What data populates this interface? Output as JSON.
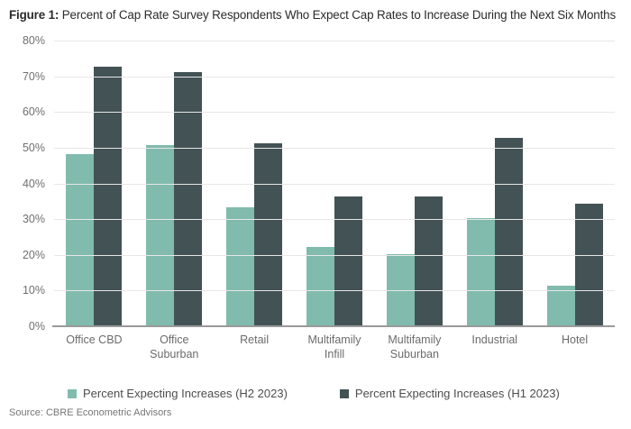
{
  "title": {
    "prefix": "Figure 1:",
    "text": " Percent of Cap Rate Survey Respondents Who Expect Cap Rates to Increase During the Next Six Months"
  },
  "source": "Source: CBRE Econometric Advisors",
  "colors": {
    "series_h2_2023": "#80BBAD",
    "series_h1_2023": "#435254",
    "gridline": "#e7e7e7",
    "axis_line": "#9a9a9a",
    "tick_label": "#6f6f6f",
    "title_text": "#2b2b2b"
  },
  "chart_data": {
    "type": "bar",
    "title": "Figure 1: Percent of Cap Rate Survey Respondents Who Expect Cap Rates to Increase During the Next Six Months",
    "categories": [
      "Office CBD",
      "Office Suburban",
      "Retail",
      "Multifamily Infill",
      "Multifamily Suburban",
      "Industrial",
      "Hotel"
    ],
    "series": [
      {
        "name": "Percent Expecting Increases (H2 2023)",
        "color": "#80BBAD",
        "values": [
          48,
          50.5,
          33,
          22,
          20,
          30,
          11
        ]
      },
      {
        "name": "Percent Expecting Increases (H1 2023)",
        "color": "#435254",
        "values": [
          72.5,
          71,
          51,
          36,
          36,
          52.5,
          34
        ]
      }
    ],
    "xlabel": "",
    "ylabel": "",
    "ylim": [
      0,
      80
    ],
    "ytick_step": 10,
    "yticks": [
      "0%",
      "10%",
      "20%",
      "30%",
      "40%",
      "50%",
      "60%",
      "70%",
      "80%"
    ],
    "grid": true,
    "legend_position": "bottom"
  }
}
